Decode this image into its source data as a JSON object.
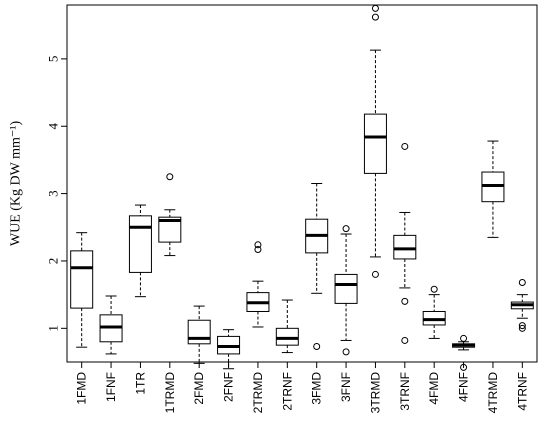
{
  "chart_data": {
    "type": "boxplot",
    "title": "",
    "xlabel": "",
    "ylabel": "WUE (Kg DW mm⁻¹)",
    "ylim": [
      0.5,
      5.8
    ],
    "yticks": [
      1,
      2,
      3,
      4,
      5
    ],
    "categories": [
      "1FMD",
      "1FNF",
      "1TR",
      "1TRMD",
      "2FMD",
      "2FNF",
      "2TRMD",
      "2TRNF",
      "3FMD",
      "3FNF",
      "3TRMD",
      "3TRNF",
      "4FMD",
      "4FNF",
      "4TRMD",
      "4TRNF"
    ],
    "boxes": [
      {
        "min": 0.72,
        "q1": 1.3,
        "median": 1.9,
        "q3": 2.15,
        "max": 2.42,
        "outliers": []
      },
      {
        "min": 0.62,
        "q1": 0.8,
        "median": 1.02,
        "q3": 1.2,
        "max": 1.48,
        "outliers": []
      },
      {
        "min": 1.47,
        "q1": 1.83,
        "median": 2.5,
        "q3": 2.67,
        "max": 2.83,
        "outliers": []
      },
      {
        "min": 2.08,
        "q1": 2.28,
        "median": 2.6,
        "q3": 2.65,
        "max": 2.76,
        "outliers": [
          3.25
        ]
      },
      {
        "min": 0.48,
        "q1": 0.77,
        "median": 0.85,
        "q3": 1.12,
        "max": 1.33,
        "outliers": []
      },
      {
        "min": 0.4,
        "q1": 0.62,
        "median": 0.73,
        "q3": 0.88,
        "max": 0.98,
        "outliers": []
      },
      {
        "min": 1.02,
        "q1": 1.25,
        "median": 1.38,
        "q3": 1.53,
        "max": 1.7,
        "outliers": [
          2.17,
          2.24
        ]
      },
      {
        "min": 0.64,
        "q1": 0.75,
        "median": 0.85,
        "q3": 1.0,
        "max": 1.42,
        "outliers": []
      },
      {
        "min": 1.52,
        "q1": 2.12,
        "median": 2.38,
        "q3": 2.62,
        "max": 3.15,
        "outliers": [
          0.73
        ]
      },
      {
        "min": 0.82,
        "q1": 1.37,
        "median": 1.65,
        "q3": 1.8,
        "max": 2.4,
        "outliers": [
          0.65,
          2.48
        ]
      },
      {
        "min": 2.06,
        "q1": 3.3,
        "median": 3.84,
        "q3": 4.18,
        "max": 5.13,
        "outliers": [
          1.8,
          5.62,
          5.75
        ]
      },
      {
        "min": 1.6,
        "q1": 2.03,
        "median": 2.18,
        "q3": 2.38,
        "max": 2.72,
        "outliers": [
          0.82,
          1.4,
          3.7
        ]
      },
      {
        "min": 0.85,
        "q1": 1.05,
        "median": 1.13,
        "q3": 1.25,
        "max": 1.5,
        "outliers": [
          1.58
        ]
      },
      {
        "min": 0.68,
        "q1": 0.72,
        "median": 0.75,
        "q3": 0.77,
        "max": 0.8,
        "outliers": [
          0.42,
          0.85
        ]
      },
      {
        "min": 2.35,
        "q1": 2.88,
        "median": 3.12,
        "q3": 3.32,
        "max": 3.78,
        "outliers": []
      },
      {
        "min": 1.15,
        "q1": 1.29,
        "median": 1.35,
        "q3": 1.39,
        "max": 1.5,
        "outliers": [
          1.0,
          1.04,
          1.68
        ]
      }
    ]
  }
}
